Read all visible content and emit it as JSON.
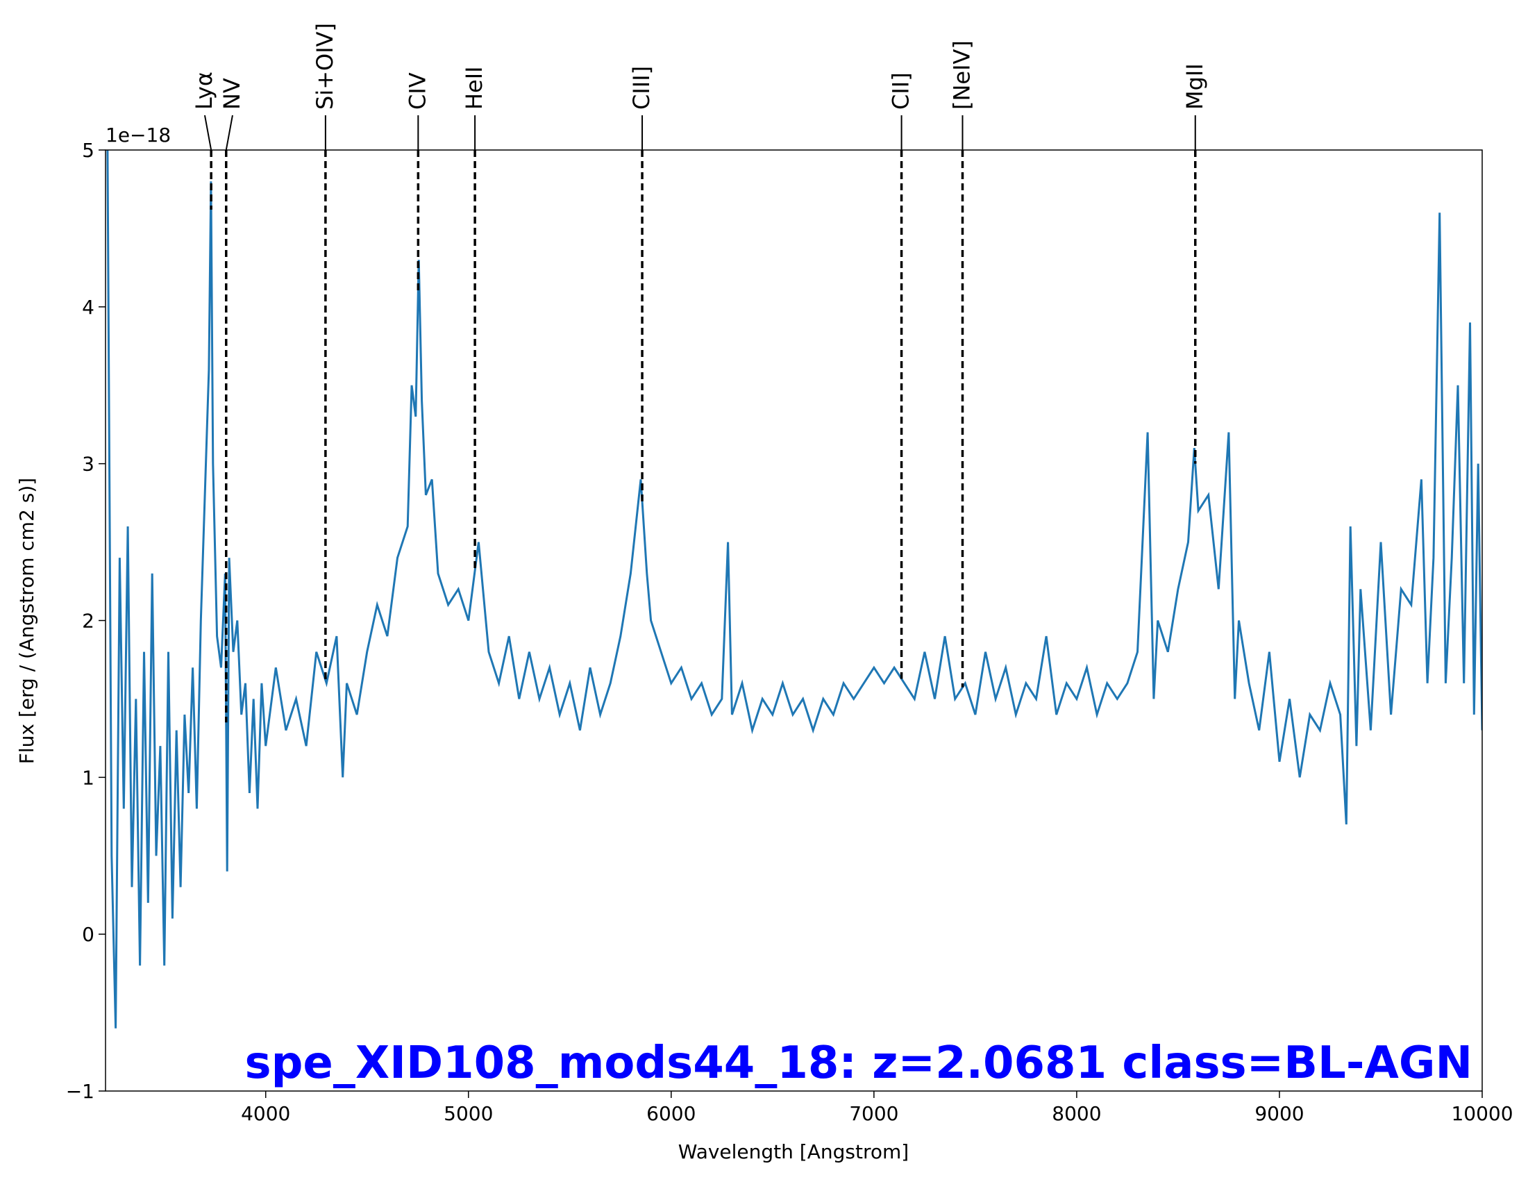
{
  "chart_data": {
    "type": "line",
    "title": "spe_XID108_mods44_18: z=2.0681 class=BL-AGN",
    "xlabel": "Wavelength [Angstrom]",
    "ylabel": "Flux [erg / (Angstrom cm2 s)]",
    "y_offset_label": "1e−18",
    "color": "#1f77b4",
    "xlim": [
      3210,
      10000
    ],
    "ylim": [
      -1,
      5
    ],
    "xticks": [
      4000,
      5000,
      6000,
      7000,
      8000,
      9000,
      10000
    ],
    "yticks": [
      {
        "value": -1,
        "label": "−1"
      },
      0,
      1,
      2,
      3,
      4,
      5
    ],
    "x": [
      3220,
      3240,
      3260,
      3280,
      3300,
      3320,
      3340,
      3360,
      3380,
      3400,
      3420,
      3440,
      3460,
      3480,
      3500,
      3520,
      3540,
      3560,
      3580,
      3600,
      3620,
      3640,
      3660,
      3680,
      3700,
      3720,
      3730,
      3740,
      3760,
      3780,
      3800,
      3810,
      3820,
      3840,
      3860,
      3880,
      3900,
      3920,
      3940,
      3960,
      3980,
      4000,
      4050,
      4100,
      4150,
      4200,
      4250,
      4300,
      4350,
      4380,
      4400,
      4450,
      4500,
      4550,
      4600,
      4650,
      4700,
      4720,
      4740,
      4755,
      4770,
      4790,
      4820,
      4850,
      4900,
      4950,
      5000,
      5050,
      5100,
      5150,
      5200,
      5250,
      5300,
      5350,
      5400,
      5450,
      5500,
      5550,
      5600,
      5650,
      5700,
      5750,
      5800,
      5850,
      5880,
      5900,
      5950,
      6000,
      6050,
      6100,
      6150,
      6200,
      6250,
      6280,
      6300,
      6350,
      6400,
      6450,
      6500,
      6550,
      6600,
      6650,
      6700,
      6750,
      6800,
      6850,
      6900,
      6950,
      7000,
      7050,
      7100,
      7150,
      7200,
      7250,
      7300,
      7350,
      7400,
      7450,
      7500,
      7550,
      7600,
      7650,
      7700,
      7750,
      7800,
      7850,
      7900,
      7950,
      8000,
      8050,
      8100,
      8150,
      8200,
      8250,
      8300,
      8350,
      8380,
      8400,
      8450,
      8500,
      8550,
      8580,
      8600,
      8650,
      8700,
      8750,
      8780,
      8800,
      8850,
      8900,
      8950,
      9000,
      9050,
      9100,
      9150,
      9200,
      9250,
      9300,
      9330,
      9350,
      9380,
      9400,
      9450,
      9500,
      9550,
      9600,
      9650,
      9700,
      9730,
      9760,
      9790,
      9820,
      9850,
      9880,
      9910,
      9940,
      9960,
      9980,
      10000
    ],
    "values": [
      5.0,
      0.5,
      -0.6,
      2.4,
      0.8,
      2.6,
      0.3,
      1.5,
      -0.2,
      1.8,
      0.2,
      2.3,
      0.5,
      1.2,
      -0.2,
      1.8,
      0.1,
      1.3,
      0.3,
      1.4,
      0.9,
      1.7,
      0.8,
      2.0,
      2.8,
      3.6,
      4.8,
      3.0,
      1.9,
      1.7,
      2.3,
      0.4,
      2.4,
      1.8,
      2.0,
      1.4,
      1.6,
      0.9,
      1.5,
      0.8,
      1.6,
      1.2,
      1.7,
      1.3,
      1.5,
      1.2,
      1.8,
      1.6,
      1.9,
      1.0,
      1.6,
      1.4,
      1.8,
      2.1,
      1.9,
      2.4,
      2.6,
      3.5,
      3.3,
      4.3,
      3.4,
      2.8,
      2.9,
      2.3,
      2.1,
      2.2,
      2.0,
      2.5,
      1.8,
      1.6,
      1.9,
      1.5,
      1.8,
      1.5,
      1.7,
      1.4,
      1.6,
      1.3,
      1.7,
      1.4,
      1.6,
      1.9,
      2.3,
      2.9,
      2.3,
      2.0,
      1.8,
      1.6,
      1.7,
      1.5,
      1.6,
      1.4,
      1.5,
      2.5,
      1.4,
      1.6,
      1.3,
      1.5,
      1.4,
      1.6,
      1.4,
      1.5,
      1.3,
      1.5,
      1.4,
      1.6,
      1.5,
      1.6,
      1.7,
      1.6,
      1.7,
      1.6,
      1.5,
      1.8,
      1.5,
      1.9,
      1.5,
      1.6,
      1.4,
      1.8,
      1.5,
      1.7,
      1.4,
      1.6,
      1.5,
      1.9,
      1.4,
      1.6,
      1.5,
      1.7,
      1.4,
      1.6,
      1.5,
      1.6,
      1.8,
      3.2,
      1.5,
      2.0,
      1.8,
      2.2,
      2.5,
      3.1,
      2.7,
      2.8,
      2.2,
      3.2,
      1.5,
      2.0,
      1.6,
      1.3,
      1.8,
      1.1,
      1.5,
      1.0,
      1.4,
      1.3,
      1.6,
      1.4,
      0.7,
      2.6,
      1.2,
      2.2,
      1.3,
      2.5,
      1.4,
      2.2,
      2.1,
      2.9,
      1.6,
      2.4,
      4.6,
      1.6,
      2.4,
      3.5,
      1.6,
      3.9,
      1.4,
      3.0,
      1.3
    ],
    "lines": [
      {
        "label": "Lyα",
        "x": 3731
      },
      {
        "label": "NV",
        "x": 3805
      },
      {
        "label": "Si+OIV]",
        "x": 4295
      },
      {
        "label": "CIV",
        "x": 4752
      },
      {
        "label": "HeII",
        "x": 5032
      },
      {
        "label": "CIII]",
        "x": 5857
      },
      {
        "label": "CII]",
        "x": 7136
      },
      {
        "label": "[NeIV]",
        "x": 7437
      },
      {
        "label": "MgII",
        "x": 8585
      }
    ]
  }
}
